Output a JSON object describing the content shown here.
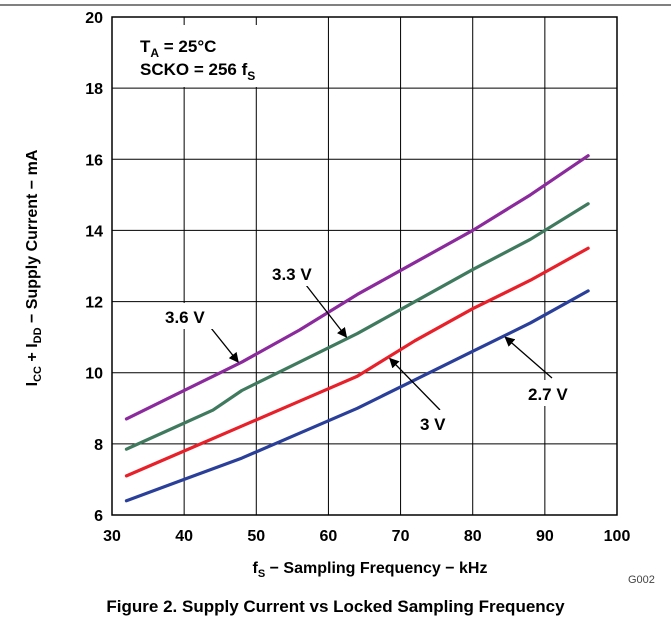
{
  "chart_data": {
    "type": "line",
    "title": "Figure 2. Supply Current vs Locked Sampling Frequency",
    "xlabel": {
      "main": "f",
      "sub": "S",
      "rest": " − Sampling Frequency − kHz"
    },
    "ylabel": {
      "p1": "I",
      "s1": "CC",
      "p2": " + I",
      "s2": "DD",
      "p3": " − Supply Current − mA"
    },
    "xlim": [
      30,
      100
    ],
    "ylim": [
      6,
      20
    ],
    "xticks": [
      30,
      40,
      50,
      60,
      70,
      80,
      90,
      100
    ],
    "yticks": [
      6,
      8,
      10,
      12,
      14,
      16,
      18,
      20
    ],
    "grid": true,
    "conditions": {
      "line1": {
        "main": "T",
        "sub": "A",
        "rest": " = 25°C"
      },
      "line2": {
        "main": "SCKO = 256 f",
        "sub": "S"
      }
    },
    "figure_code": "G002",
    "series": [
      {
        "name": "3.6 V",
        "color": "#8b2a9c",
        "x": [
          32,
          38,
          44,
          48,
          56,
          64,
          72,
          80,
          88,
          96
        ],
        "y": [
          8.7,
          9.3,
          9.9,
          10.3,
          11.2,
          12.2,
          13.1,
          14.0,
          15.0,
          16.1
        ]
      },
      {
        "name": "3.3 V",
        "color": "#3f7a5e",
        "x": [
          32,
          38,
          44,
          48,
          56,
          64,
          72,
          80,
          88,
          96
        ],
        "y": [
          7.85,
          8.4,
          8.95,
          9.5,
          10.3,
          11.1,
          12.0,
          12.9,
          13.75,
          14.75
        ]
      },
      {
        "name": "3 V",
        "color": "#e8202a",
        "x": [
          32,
          40,
          48,
          56,
          64,
          72,
          80,
          88,
          96
        ],
        "y": [
          7.1,
          7.8,
          8.5,
          9.2,
          9.9,
          10.9,
          11.8,
          12.6,
          13.5
        ]
      },
      {
        "name": "2.7 V",
        "color": "#2a3f9a",
        "x": [
          32,
          40,
          48,
          56,
          64,
          72,
          80,
          88,
          96
        ],
        "y": [
          6.4,
          7.0,
          7.6,
          8.3,
          9.0,
          9.8,
          10.6,
          11.4,
          12.3
        ]
      }
    ],
    "annotations": [
      {
        "label": "3.6 V",
        "tip": [
          47.5,
          10.3
        ]
      },
      {
        "label": "3.3 V",
        "tip": [
          62.5,
          11.0
        ]
      },
      {
        "label": "3 V",
        "tip": [
          68.5,
          10.4
        ]
      },
      {
        "label": "2.7 V",
        "tip": [
          84.5,
          11.0
        ]
      }
    ]
  }
}
